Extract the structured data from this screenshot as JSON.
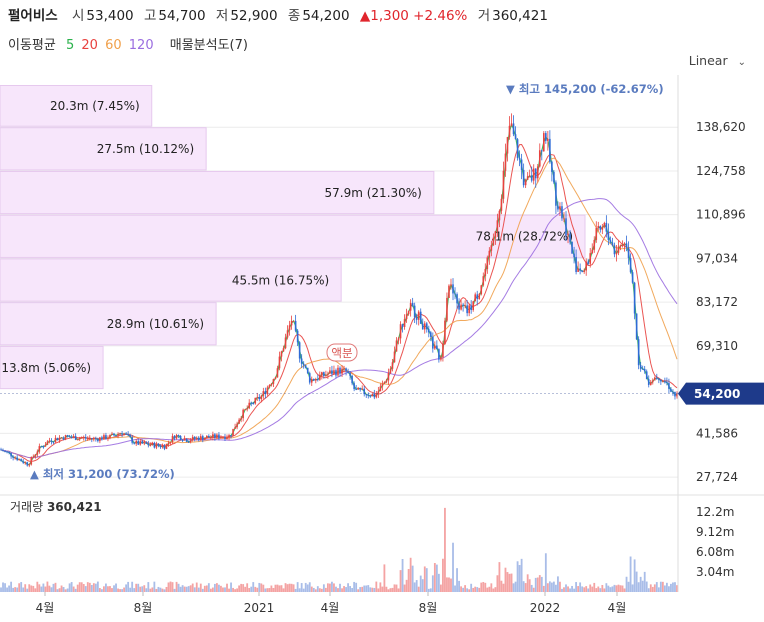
{
  "header": {
    "stock_name": "펄어비스",
    "open_label": "시",
    "open": "53,400",
    "high_label": "고",
    "high": "54,700",
    "low_label": "저",
    "low": "52,900",
    "close_label": "종",
    "close": "54,200",
    "change": "▲1,300 +2.46%",
    "volume_label": "거",
    "volume": "360,421"
  },
  "indicators": {
    "ma_label": "이동평균",
    "ma_periods": [
      {
        "period": "5",
        "color": "#2bb24c"
      },
      {
        "period": "20",
        "color": "#e8423f"
      },
      {
        "period": "60",
        "color": "#f0a04b"
      },
      {
        "period": "120",
        "color": "#9b6ee0"
      }
    ],
    "volume_profile_label": "매물분석도(7)"
  },
  "scale": {
    "selected": "Linear"
  },
  "chart_data": {
    "type": "candlestick",
    "y_ticks": [
      138620,
      124758,
      110896,
      97034,
      83172,
      69310,
      41586,
      27724
    ],
    "y_range": [
      23000,
      152000
    ],
    "current_price": 54200,
    "current_price_label": "54,200",
    "x_ticks": [
      "4월",
      "8월",
      "2021",
      "4월",
      "8월",
      "2022",
      "4월"
    ],
    "max_annotation": "▼ 최고 145,200 (-62.67%)",
    "min_annotation": "▲ 최저 31,200 (73.72%)",
    "event_annotation": "액분",
    "colors": {
      "up": "#e8423f",
      "down": "#2f6bd6",
      "ma5": "#2bb24c",
      "ma20": "#e8423f",
      "ma60": "#f0a04b",
      "ma120": "#9b6ee0"
    },
    "price_anchors": [
      [
        0,
        36500
      ],
      [
        10,
        35000
      ],
      [
        18,
        33500
      ],
      [
        28,
        31800
      ],
      [
        38,
        36500
      ],
      [
        50,
        39500
      ],
      [
        65,
        40500
      ],
      [
        80,
        40200
      ],
      [
        95,
        39800
      ],
      [
        110,
        40500
      ],
      [
        122,
        42000
      ],
      [
        135,
        38500
      ],
      [
        150,
        38000
      ],
      [
        165,
        37500
      ],
      [
        175,
        41000
      ],
      [
        188,
        39500
      ],
      [
        200,
        40200
      ],
      [
        215,
        40500
      ],
      [
        230,
        40800
      ],
      [
        240,
        47000
      ],
      [
        250,
        50500
      ],
      [
        262,
        53500
      ],
      [
        275,
        60000
      ],
      [
        285,
        71000
      ],
      [
        292,
        78000
      ],
      [
        300,
        66000
      ],
      [
        310,
        58500
      ],
      [
        320,
        59500
      ],
      [
        332,
        61000
      ],
      [
        340,
        61500
      ],
      [
        347,
        61000
      ],
      [
        355,
        55000
      ],
      [
        365,
        54500
      ],
      [
        375,
        53500
      ],
      [
        385,
        58000
      ],
      [
        392,
        63500
      ],
      [
        400,
        75000
      ],
      [
        410,
        82000
      ],
      [
        420,
        78000
      ],
      [
        432,
        70000
      ],
      [
        441,
        64500
      ],
      [
        448,
        90000
      ],
      [
        458,
        82000
      ],
      [
        468,
        80000
      ],
      [
        478,
        86000
      ],
      [
        490,
        98000
      ],
      [
        500,
        115000
      ],
      [
        510,
        140000
      ],
      [
        518,
        130000
      ],
      [
        525,
        120000
      ],
      [
        535,
        124000
      ],
      [
        545,
        138000
      ],
      [
        555,
        117000
      ],
      [
        565,
        108000
      ],
      [
        575,
        95000
      ],
      [
        585,
        93000
      ],
      [
        595,
        104000
      ],
      [
        605,
        107000
      ],
      [
        615,
        99000
      ],
      [
        625,
        103000
      ],
      [
        633,
        88000
      ],
      [
        638,
        65000
      ],
      [
        648,
        58000
      ],
      [
        658,
        60000
      ],
      [
        668,
        57000
      ],
      [
        676,
        53000
      ],
      [
        678,
        54200
      ]
    ],
    "volume_ticks": [
      {
        "value": 12200000,
        "label": "12.2m"
      },
      {
        "value": 9120000,
        "label": "9.12m"
      },
      {
        "value": 6080000,
        "label": "6.08m"
      },
      {
        "value": 3040000,
        "label": "3.04m"
      }
    ],
    "volume_label": "거래량",
    "volume_value": "360,421",
    "volume_max": 14000000,
    "volume_profile": [
      {
        "price_low": 138620,
        "price_high": 152000,
        "label": "20.3m (7.45%)",
        "share": 7.45
      },
      {
        "price_low": 124758,
        "price_high": 138620,
        "label": "27.5m (10.12%)",
        "share": 10.12
      },
      {
        "price_low": 110896,
        "price_high": 124758,
        "label": "57.9m (21.30%)",
        "share": 21.3
      },
      {
        "price_low": 97034,
        "price_high": 110896,
        "label": "78.1m (28.72%)",
        "share": 28.72
      },
      {
        "price_low": 83172,
        "price_high": 97034,
        "label": "45.5m (16.75%)",
        "share": 16.75
      },
      {
        "price_low": 69310,
        "price_high": 83172,
        "label": "28.9m (10.61%)",
        "share": 10.61
      },
      {
        "price_low": 55448,
        "price_high": 69310,
        "label": "13.8m (5.06%)",
        "share": 5.06
      }
    ]
  }
}
